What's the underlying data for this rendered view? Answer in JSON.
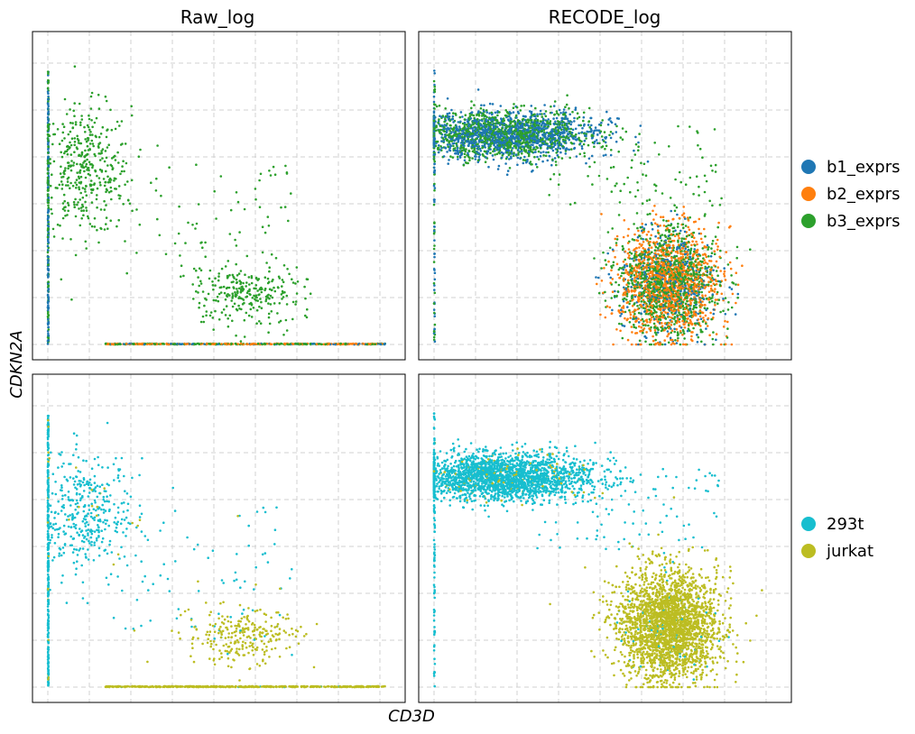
{
  "chart_data": {
    "type": "scatter",
    "xlabel": "CD3D",
    "ylabel": "CDKN2A",
    "columns": [
      "Raw_log",
      "RECODE_log"
    ],
    "rows": [
      {
        "legend_title": "",
        "legend": [
          {
            "name": "b1_exprs",
            "color": "#1f77b4"
          },
          {
            "name": "b2_exprs",
            "color": "#ff7f0e"
          },
          {
            "name": "b3_exprs",
            "color": "#2ca02c"
          }
        ]
      },
      {
        "legend_title": "",
        "legend": [
          {
            "name": "293t",
            "color": "#17becf"
          },
          {
            "name": "jurkat",
            "color": "#bcbd22"
          }
        ]
      }
    ],
    "panels": {
      "Raw_log": {
        "xlim": [
          0,
          4.2
        ],
        "ylim": [
          0,
          3.3
        ],
        "clusters": [
          {
            "label": "zero-CD3D column",
            "x": [
              0,
              0.01
            ],
            "y": [
              0,
              3.0
            ],
            "n": 300
          },
          {
            "label": "high-CDKN2A cells",
            "x_center": 0.45,
            "y_center": 1.9,
            "x_sd": 0.28,
            "y_sd": 0.35,
            "n": 400
          },
          {
            "label": "intermediate",
            "x_range": [
              0.8,
              3.0
            ],
            "y_range": [
              0.6,
              2.0
            ],
            "n": 80
          },
          {
            "label": "low-CDKN2A cells",
            "x_center": 2.4,
            "y_center": 0.55,
            "x_sd": 0.35,
            "y_sd": 0.16,
            "n": 260
          },
          {
            "label": "zero-CDKN2A row",
            "x": [
              0.7,
              4.1
            ],
            "y": [
              0,
              0.01
            ],
            "n": 500
          }
        ]
      },
      "RECODE_log": {
        "xlim": [
          0,
          4.2
        ],
        "ylim": [
          0,
          3.3
        ],
        "clusters": [
          {
            "label": "high-CDKN2A cells",
            "x_center": 0.85,
            "y_center": 2.3,
            "x_sd": 0.55,
            "y_sd": 0.13,
            "n": 2200
          },
          {
            "label": "transition",
            "x_range": [
              1.2,
              3.5
            ],
            "y_range": [
              1.5,
              2.4
            ],
            "n": 90
          },
          {
            "label": "low-CDKN2A cells",
            "x_center": 2.85,
            "y_center": 0.68,
            "x_sd": 0.3,
            "y_sd": 0.3,
            "n": 2600
          },
          {
            "label": "zero-CD3D column",
            "x": [
              0,
              0.01
            ],
            "y": [
              0,
              3.0
            ],
            "n": 80
          }
        ]
      }
    },
    "grid": true,
    "legend_position": "right",
    "tick_labels": false
  }
}
